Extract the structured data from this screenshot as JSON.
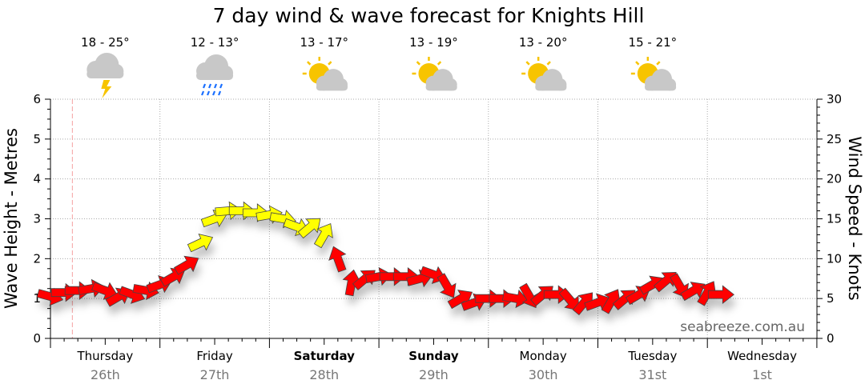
{
  "chart_data": {
    "type": "scatter",
    "title": "7 day wind & wave forecast for Knights Hill",
    "ylabel": "Wave Height - Metres",
    "y2label": "Wind Speed - Knots",
    "ylim": [
      0,
      6
    ],
    "y2lim": [
      0,
      30
    ],
    "yticks": [
      "0",
      "1",
      "2",
      "3",
      "4",
      "5",
      "6"
    ],
    "y2ticks": [
      "0",
      "5",
      "10",
      "15",
      "20",
      "25",
      "30"
    ],
    "grid": true,
    "watermark": "seabreeze.com.au",
    "days": [
      {
        "name": "Thursday",
        "date": "26th",
        "bold": false,
        "temp": "18 - 25°",
        "icon": "storm-icon"
      },
      {
        "name": "Friday",
        "date": "27th",
        "bold": false,
        "temp": "12 - 13°",
        "icon": "rain-icon"
      },
      {
        "name": "Saturday",
        "date": "28th",
        "bold": true,
        "temp": "13 - 17°",
        "icon": "partly-cloudy-icon"
      },
      {
        "name": "Sunday",
        "date": "29th",
        "bold": true,
        "temp": "13 - 19°",
        "icon": "partly-cloudy-icon"
      },
      {
        "name": "Monday",
        "date": "30th",
        "bold": false,
        "temp": "13 - 20°",
        "icon": "partly-cloudy-icon"
      },
      {
        "name": "Tuesday",
        "date": "31st",
        "bold": false,
        "temp": "15 - 21°",
        "icon": "partly-cloudy-icon"
      },
      {
        "name": "Wednesday",
        "date": "1st",
        "bold": false,
        "temp": "",
        "icon": ""
      }
    ],
    "colors": {
      "red": "#ff0000",
      "yellow": "#ffff00",
      "now_line": "#f4a0a0"
    },
    "now_day_offset": 0.2,
    "hours_per_point": 3,
    "wave_height_m": [
      1.05,
      1.15,
      1.2,
      1.25,
      1.2,
      1.05,
      1.1,
      1.2,
      1.35,
      1.55,
      1.85,
      2.4,
      3.0,
      3.2,
      3.2,
      3.15,
      3.1,
      3.0,
      2.8,
      2.8,
      2.6,
      2.0,
      1.4,
      1.5,
      1.55,
      1.55,
      1.55,
      1.5,
      1.6,
      1.3,
      1.0,
      0.9,
      1.0,
      1.0,
      1.0,
      1.05,
      1.1,
      1.1,
      0.95,
      0.9,
      0.9,
      0.95,
      1.0,
      1.1,
      1.35,
      1.45,
      1.3,
      1.2,
      1.15,
      1.1
    ],
    "wind_direction_deg": [
      15,
      0,
      0,
      -10,
      20,
      -30,
      20,
      10,
      -20,
      -30,
      -30,
      -25,
      -20,
      -5,
      0,
      0,
      -10,
      10,
      20,
      -40,
      -60,
      -110,
      -80,
      -40,
      -10,
      0,
      0,
      -15,
      20,
      60,
      -30,
      -20,
      0,
      0,
      10,
      60,
      -40,
      0,
      50,
      -50,
      -20,
      -60,
      -40,
      -30,
      -30,
      -40,
      60,
      -30,
      -60,
      0
    ],
    "arrow_color": [
      "red",
      "red",
      "red",
      "red",
      "red",
      "red",
      "red",
      "red",
      "red",
      "red",
      "red",
      "yellow",
      "yellow",
      "yellow",
      "yellow",
      "yellow",
      "yellow",
      "yellow",
      "yellow",
      "yellow",
      "yellow",
      "red",
      "red",
      "red",
      "red",
      "red",
      "red",
      "red",
      "red",
      "red",
      "red",
      "red",
      "red",
      "red",
      "red",
      "red",
      "red",
      "red",
      "red",
      "red",
      "red",
      "red",
      "red",
      "red",
      "red",
      "red",
      "red",
      "red",
      "red",
      "red"
    ]
  }
}
